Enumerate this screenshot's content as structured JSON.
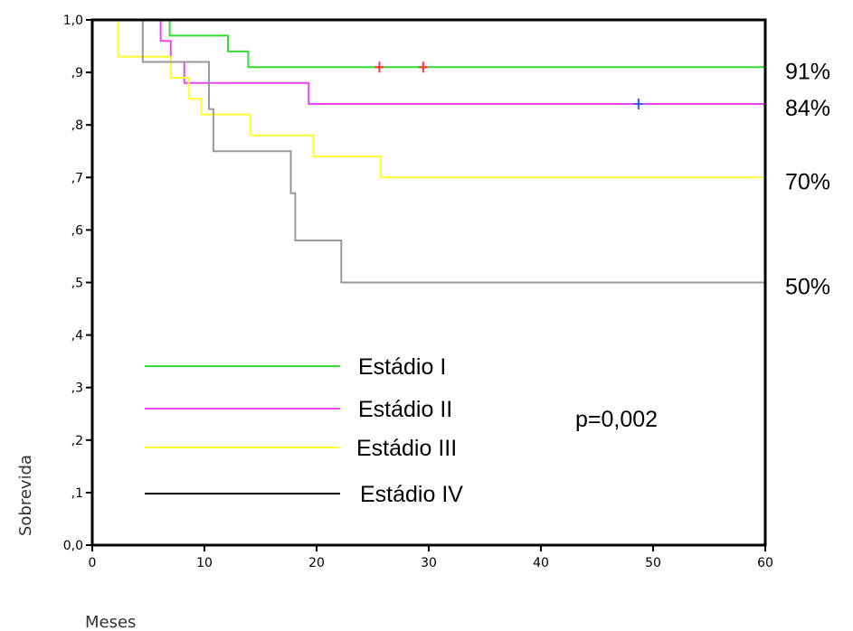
{
  "chart_data": {
    "type": "line",
    "title": "",
    "xlabel": "Meses",
    "ylabel": "Sobrevida",
    "xlim": [
      0,
      60
    ],
    "ylim": [
      0,
      1
    ],
    "x_ticks": [
      0,
      10,
      20,
      30,
      40,
      50,
      60
    ],
    "x_tick_labels": [
      "0",
      "10",
      "20",
      "30",
      "40",
      "50",
      "60"
    ],
    "y_ticks": [
      0,
      0.1,
      0.2,
      0.3,
      0.4,
      0.5,
      0.6,
      0.7,
      0.8,
      0.9,
      1.0
    ],
    "y_tick_labels": [
      "0,0",
      ",1",
      ",2",
      ",3",
      ",4",
      ",5",
      ",6",
      ",7",
      ",8",
      ",9",
      "1,0"
    ],
    "grid": false,
    "legend_position": "bottom-left",
    "annotation": "p=0,002",
    "series": [
      {
        "name": "Estádio I",
        "color": "#33dd33",
        "points": [
          [
            2.3,
            1.0
          ],
          [
            6.9,
            1.0
          ],
          [
            6.9,
            0.97
          ],
          [
            12.1,
            0.97
          ],
          [
            12.1,
            0.94
          ],
          [
            13.9,
            0.94
          ],
          [
            13.9,
            0.91
          ],
          [
            60,
            0.91
          ]
        ],
        "censored": [
          [
            25.6,
            0.91
          ],
          [
            29.5,
            0.91
          ]
        ],
        "censor_color": "#ff3333",
        "end_label": "91%"
      },
      {
        "name": "Estádio II",
        "color": "#ee44ee",
        "points": [
          [
            2.3,
            1.0
          ],
          [
            6.1,
            1.0
          ],
          [
            6.1,
            0.96
          ],
          [
            7.0,
            0.96
          ],
          [
            7.0,
            0.92
          ],
          [
            8.2,
            0.92
          ],
          [
            8.2,
            0.88
          ],
          [
            19.3,
            0.88
          ],
          [
            19.3,
            0.84
          ],
          [
            60,
            0.84
          ]
        ],
        "censored": [
          [
            48.7,
            0.84
          ]
        ],
        "censor_color": "#3355ff",
        "end_label": "84%"
      },
      {
        "name": "Estádio III",
        "color": "#ffff33",
        "points": [
          [
            2.3,
            1.0
          ],
          [
            2.3,
            0.93
          ],
          [
            7.0,
            0.93
          ],
          [
            7.0,
            0.89
          ],
          [
            8.6,
            0.89
          ],
          [
            8.6,
            0.85
          ],
          [
            9.7,
            0.85
          ],
          [
            9.7,
            0.82
          ],
          [
            14.1,
            0.82
          ],
          [
            14.1,
            0.78
          ],
          [
            19.7,
            0.78
          ],
          [
            19.7,
            0.74
          ],
          [
            25.7,
            0.74
          ],
          [
            25.7,
            0.7
          ],
          [
            60,
            0.7
          ]
        ],
        "censored": [],
        "end_label": "70%"
      },
      {
        "name": "Estádio IV",
        "color": "#999999",
        "points": [
          [
            4.5,
            1.0
          ],
          [
            4.5,
            0.92
          ],
          [
            10.4,
            0.92
          ],
          [
            10.4,
            0.83
          ],
          [
            10.8,
            0.83
          ],
          [
            10.8,
            0.75
          ],
          [
            17.7,
            0.75
          ],
          [
            17.7,
            0.67
          ],
          [
            18.1,
            0.67
          ],
          [
            18.1,
            0.58
          ],
          [
            22.2,
            0.58
          ],
          [
            22.2,
            0.5
          ],
          [
            60,
            0.5
          ]
        ],
        "censored": [],
        "end_label": "50%"
      }
    ],
    "legend": [
      {
        "label": "Estádio I",
        "color": "#33dd33"
      },
      {
        "label": "Estádio II",
        "color": "#ee44ee"
      },
      {
        "label": "Estádio III",
        "color": "#ffff33"
      },
      {
        "label": "Estádio IV",
        "color": "#000000"
      }
    ]
  }
}
